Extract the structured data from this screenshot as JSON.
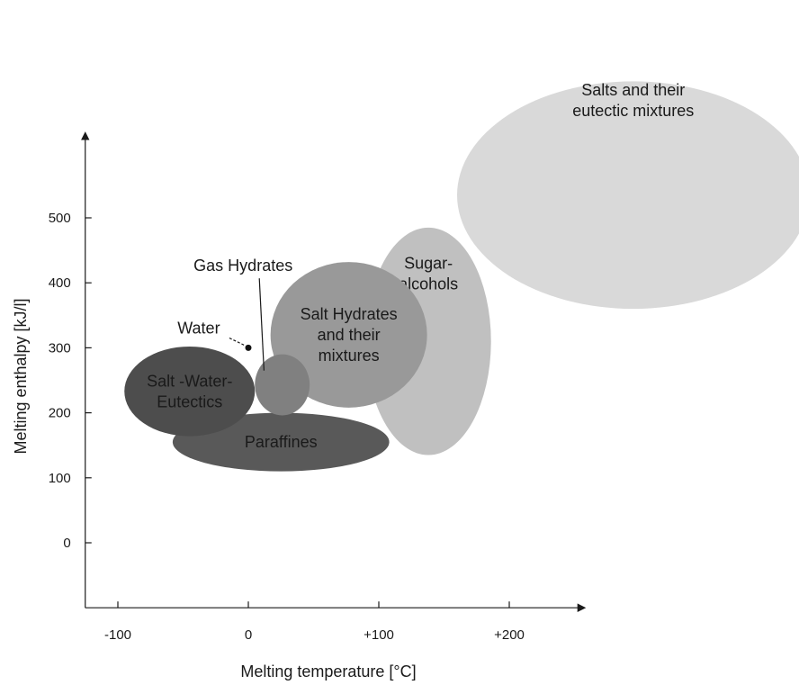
{
  "chart_data": {
    "type": "bubble",
    "xlabel": "Melting temperature  [°C]",
    "ylabel": "Melting enthalpy [kJ/l]",
    "x_ticks": [
      {
        "value": -100,
        "label": "-100"
      },
      {
        "value": 0,
        "label": "0"
      },
      {
        "value": 100,
        "label": "+100"
      },
      {
        "value": 200,
        "label": "+200"
      }
    ],
    "y_ticks": [
      {
        "value": 0,
        "label": "0"
      },
      {
        "value": 100,
        "label": "100"
      },
      {
        "value": 200,
        "label": "200"
      },
      {
        "value": 300,
        "label": "300"
      },
      {
        "value": 400,
        "label": "400"
      },
      {
        "value": 500,
        "label": "500"
      }
    ],
    "xlim": [
      -125,
      250
    ],
    "ylim": [
      -100,
      550
    ],
    "grid": false,
    "regions": [
      {
        "id": "salts",
        "lines": [
          "Salts and their",
          "eutectic mixtures"
        ],
        "cx": 295,
        "cy": 535,
        "rx": 135,
        "ry": 175,
        "color": "#d9d9d9"
      },
      {
        "id": "sugar-alcohols",
        "lines": [
          "Sugar-",
          "alcohols"
        ],
        "cx": 138,
        "cy": 310,
        "rx": 48,
        "ry": 175,
        "color": "#c0c0c0"
      },
      {
        "id": "paraffines",
        "lines": [
          "Paraffines"
        ],
        "cx": 25,
        "cy": 155,
        "rx": 83,
        "ry": 45,
        "color": "#595959"
      },
      {
        "id": "salt-hydrates",
        "lines": [
          "Salt Hydrates",
          "and their",
          "mixtures"
        ],
        "cx": 77,
        "cy": 320,
        "rx": 60,
        "ry": 112,
        "color": "#999999"
      },
      {
        "id": "salt-water-eutectics",
        "lines": [
          "Salt -Water-",
          "Eutectics"
        ],
        "cx": -45,
        "cy": 233,
        "rx": 50,
        "ry": 69,
        "color": "#4d4d4d"
      },
      {
        "id": "gas-hydrates",
        "lines": [],
        "cx": 26,
        "cy": 243,
        "rx": 21,
        "ry": 47,
        "color": "#808080"
      }
    ],
    "points": [
      {
        "id": "water",
        "x": 0,
        "y": 300
      }
    ],
    "annotations": [
      {
        "id": "gas-hydrates-label",
        "text": "Gas Hydrates",
        "x": -4,
        "y": 418,
        "target_x": 12,
        "target_y": 265
      },
      {
        "id": "water-label",
        "text": "Water",
        "x": -38,
        "y": 322,
        "target_x": -2,
        "target_y": 303
      }
    ]
  }
}
